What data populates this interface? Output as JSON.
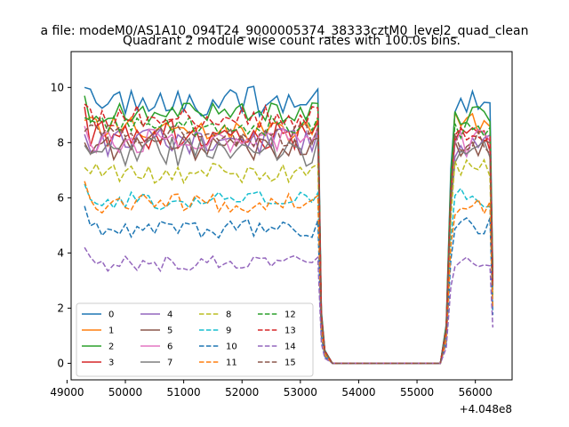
{
  "chart_data": {
    "type": "line",
    "suptitle": "a file: modeM0/AS1A10_094T24_9000005374_38333cztM0_level2_quad_clean",
    "title": "Quadrant 2 module wise count rates with 100.0s bins.",
    "xlabel": "",
    "ylabel": "",
    "x_offset_label": "+4.048e8",
    "xlim": [
      49070,
      56630
    ],
    "ylim": [
      -0.6,
      11.3
    ],
    "xticks": [
      49000,
      50000,
      51000,
      52000,
      53000,
      54000,
      55000,
      56000
    ],
    "yticks": [
      0,
      2,
      4,
      6,
      8,
      10
    ],
    "legend": {
      "location": "lower-left",
      "columns": 4
    },
    "series": [
      {
        "name": "0",
        "color": "#1f77b4",
        "dash": "solid",
        "level": 9.5,
        "late": 9.4,
        "noise": 0.55,
        "lead": 10.0
      },
      {
        "name": "1",
        "color": "#ff7f0e",
        "dash": "solid",
        "level": 8.5,
        "late": 8.7,
        "noise": 0.45,
        "lead": 8.8
      },
      {
        "name": "2",
        "color": "#2ca02c",
        "dash": "solid",
        "level": 9.1,
        "late": 9.0,
        "noise": 0.4,
        "lead": 9.7
      },
      {
        "name": "3",
        "color": "#d62728",
        "dash": "solid",
        "level": 8.3,
        "late": 8.2,
        "noise": 0.55,
        "lead": 9.3
      },
      {
        "name": "4",
        "color": "#9467bd",
        "dash": "solid",
        "level": 8.0,
        "late": 7.9,
        "noise": 0.5,
        "lead": 8.3
      },
      {
        "name": "5",
        "color": "#8c564b",
        "dash": "solid",
        "level": 7.8,
        "late": 7.8,
        "noise": 0.45,
        "lead": 8.0
      },
      {
        "name": "6",
        "color": "#e377c2",
        "dash": "solid",
        "level": 8.1,
        "late": 8.0,
        "noise": 0.5,
        "lead": 8.6
      },
      {
        "name": "7",
        "color": "#7f7f7f",
        "dash": "solid",
        "level": 7.7,
        "late": 7.6,
        "noise": 0.55,
        "lead": 7.9
      },
      {
        "name": "8",
        "color": "#bcbd22",
        "dash": "dashed",
        "level": 6.9,
        "late": 7.0,
        "noise": 0.4,
        "lead": 7.1
      },
      {
        "name": "9",
        "color": "#17becf",
        "dash": "dashed",
        "level": 5.9,
        "late": 6.0,
        "noise": 0.35,
        "lead": 6.5
      },
      {
        "name": "10",
        "color": "#1f77b4",
        "dash": "dashed",
        "level": 4.9,
        "late": 5.0,
        "noise": 0.35,
        "lead": 5.7
      },
      {
        "name": "11",
        "color": "#ff7f0e",
        "dash": "dashed",
        "level": 5.8,
        "late": 5.7,
        "noise": 0.35,
        "lead": 6.6
      },
      {
        "name": "12",
        "color": "#2ca02c",
        "dash": "dashed",
        "level": 8.6,
        "late": 8.5,
        "noise": 0.4,
        "lead": 8.9
      },
      {
        "name": "13",
        "color": "#d62728",
        "dash": "dashed",
        "level": 8.9,
        "late": 8.3,
        "noise": 0.45,
        "lead": 9.4
      },
      {
        "name": "14",
        "color": "#9467bd",
        "dash": "dashed",
        "level": 3.6,
        "late": 3.7,
        "noise": 0.3,
        "lead": 4.2
      },
      {
        "name": "15",
        "color": "#8c564b",
        "dash": "dashed",
        "level": 8.2,
        "late": 8.0,
        "noise": 0.45,
        "lead": 8.4
      }
    ],
    "time_profile": {
      "bin_seconds": 100,
      "segment_1": [
        49300,
        53300
      ],
      "ramp_down_end": 53550,
      "zero_until": 55400,
      "segment_2": [
        55650,
        56250
      ],
      "end": 56300,
      "gap_value": 0
    }
  }
}
